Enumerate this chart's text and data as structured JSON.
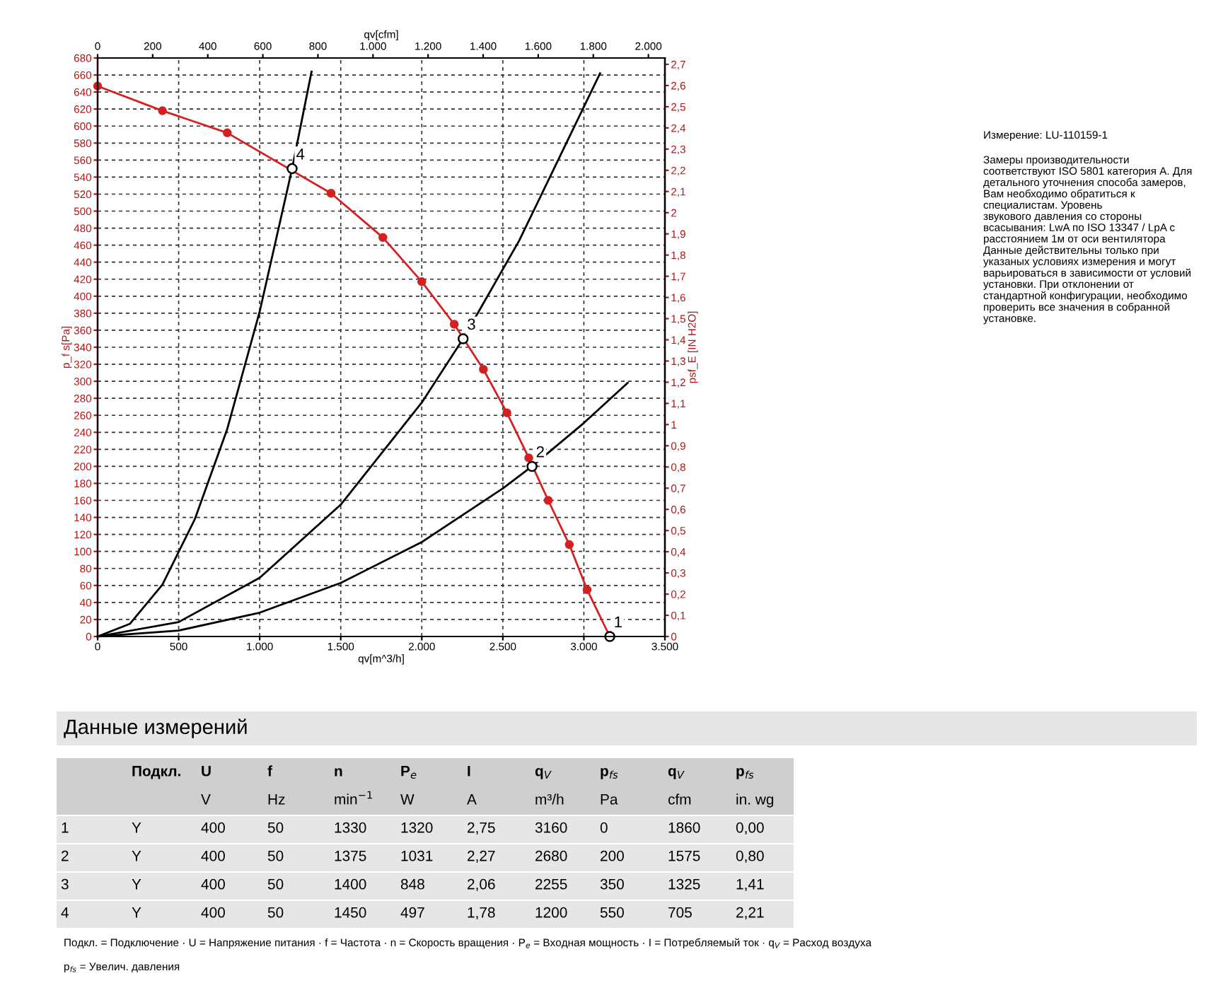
{
  "chart_data": {
    "type": "line",
    "xlabel": "qv[m^3/h]",
    "x2label": "qv[cfm]",
    "ylabel": "p_f s[Pa]",
    "y2label": "psf_E [IN H2O]",
    "xlim": [
      0,
      3500
    ],
    "xticks": [
      0,
      500,
      {
        "value": 1000,
        "label": "1.000"
      },
      {
        "value": 1500,
        "label": "1.500"
      },
      {
        "value": 2000,
        "label": "2.000"
      },
      {
        "value": 2500,
        "label": "2.500"
      },
      {
        "value": 3000,
        "label": "3.000"
      },
      {
        "value": 3500,
        "label": "3.500"
      }
    ],
    "x2lim": [
      0,
      2060
    ],
    "x2ticks": [
      0,
      200,
      400,
      600,
      800,
      {
        "value": 1000,
        "label": "1.000"
      },
      {
        "value": 1200,
        "label": "1.200"
      },
      {
        "value": 1400,
        "label": "1.400"
      },
      {
        "value": 1600,
        "label": "1.600"
      },
      {
        "value": 1800,
        "label": "1.800"
      },
      {
        "value": 2000,
        "label": "2.000"
      }
    ],
    "ylim": [
      0,
      680
    ],
    "yticks": [
      0,
      20,
      40,
      60,
      80,
      100,
      120,
      140,
      160,
      180,
      200,
      220,
      240,
      260,
      280,
      300,
      320,
      340,
      360,
      380,
      400,
      420,
      440,
      460,
      480,
      500,
      520,
      540,
      560,
      580,
      600,
      620,
      640,
      660,
      680
    ],
    "y2lim": [
      0,
      2.73
    ],
    "y2ticks": [
      0,
      {
        "value": 0.1,
        "label": "0,1"
      },
      {
        "value": 0.2,
        "label": "0,2"
      },
      {
        "value": 0.3,
        "label": "0,3"
      },
      {
        "value": 0.4,
        "label": "0,4"
      },
      {
        "value": 0.5,
        "label": "0,5"
      },
      {
        "value": 0.6,
        "label": "0,6"
      },
      {
        "value": 0.7,
        "label": "0,7"
      },
      {
        "value": 0.8,
        "label": "0,8"
      },
      {
        "value": 0.9,
        "label": "0,9"
      },
      1,
      {
        "value": 1.1,
        "label": "1,1"
      },
      {
        "value": 1.2,
        "label": "1,2"
      },
      {
        "value": 1.3,
        "label": "1,3"
      },
      {
        "value": 1.4,
        "label": "1,4"
      },
      {
        "value": 1.5,
        "label": "1,5"
      },
      {
        "value": 1.6,
        "label": "1,6"
      },
      {
        "value": 1.7,
        "label": "1,7"
      },
      {
        "value": 1.8,
        "label": "1,8"
      },
      {
        "value": 1.9,
        "label": "1,9"
      },
      2,
      {
        "value": 2.1,
        "label": "2,1"
      },
      {
        "value": 2.2,
        "label": "2,2"
      },
      {
        "value": 2.3,
        "label": "2,3"
      },
      {
        "value": 2.4,
        "label": "2,4"
      },
      {
        "value": 2.5,
        "label": "2,5"
      },
      {
        "value": 2.6,
        "label": "2,6"
      },
      {
        "value": 2.7,
        "label": "2,7"
      }
    ],
    "grid": true,
    "series": [
      {
        "color": "#d42020",
        "marker": "circle",
        "x": [
          0,
          400,
          800,
          1440,
          1760,
          2000,
          2200,
          2380,
          2525,
          2660,
          2780,
          2910,
          3020,
          3160
        ],
        "values": [
          647,
          618,
          592,
          521,
          469,
          417,
          367,
          314,
          263,
          210,
          160,
          108,
          55,
          0
        ]
      },
      {
        "color": "#000000",
        "x": [
          0,
          200,
          400,
          600,
          800,
          1000,
          1200,
          1320
        ],
        "values": [
          0,
          15,
          61,
          138,
          244,
          382,
          550,
          664
        ]
      },
      {
        "color": "#000000",
        "x": [
          0,
          500,
          1000,
          1500,
          2000,
          2255,
          2600,
          3100
        ],
        "values": [
          0,
          17,
          69,
          155,
          275,
          350,
          465,
          662
        ]
      },
      {
        "color": "#000000",
        "x": [
          0,
          500,
          1000,
          1500,
          2000,
          2500,
          2680,
          3000,
          3270
        ],
        "values": [
          0,
          7,
          28,
          63,
          111,
          174,
          200,
          251,
          298
        ]
      },
      {
        "type": "scatter",
        "color": "#000000",
        "marker": "circle",
        "x": [
          3160,
          2680,
          2255,
          1200
        ],
        "values": [
          0,
          200,
          350,
          550
        ]
      }
    ],
    "annotations": [
      {
        "text": "1",
        "x": 3160,
        "y": 0
      },
      {
        "text": "2",
        "x": 2680,
        "y": 200
      },
      {
        "text": "3",
        "x": 2255,
        "y": 350
      },
      {
        "text": "4",
        "x": 1200,
        "y": 550
      },
      "Измерение: LU-110159-1",
      "Замеры производительности\nсоответствуют ISO 5801 категория А. Для\nдетального уточнения способа замеров,\nВам необходимо обратиться к\nспециалистам. Уровень\nзвукового давления со стороны\nвсасывания: LwA по ISO 13347 / LpA с\nрасстоянием 1м от оси вентилятора\nДанные действительны только при\nуказаных условиях измерения и могут\nварьироваться в зависимости от условий\nустановки. При отклонении от\nстандартной конфигурации, необходимо\nпроверить все значения в собранной\nустановке.",
      "Данные измерений",
      "Подкл.",
      "U",
      "f",
      "n",
      "P$_{e}$",
      "I",
      "q$_{V}$",
      "p$_{fs}$",
      "q$_{V}$",
      "p$_{fs}$",
      "V",
      "Hz",
      "min$^{−1}$",
      "W",
      "A",
      "m³/h",
      "Pa",
      "cfm",
      "in. wg",
      "1",
      "Y",
      "400",
      "50",
      "1330",
      "1320",
      "2,75",
      "3160",
      "0",
      "1860",
      "0,00",
      "2",
      "Y",
      "400",
      "50",
      "1375",
      "1031",
      "2,27",
      "2680",
      "200",
      "1575",
      "0,80",
      "3",
      "Y",
      "400",
      "50",
      "1400",
      "848",
      "2,06",
      "2255",
      "350",
      "1325",
      "1,41",
      "4",
      "Y",
      "400",
      "50",
      "1450",
      "497",
      "1,78",
      "1200",
      "550",
      "705",
      "2,21",
      "Подкл. = Подключение · U = Напряжение питания · f = Частота · n = Скорость вращения · P$_{e}$ = Входная мощность · I = Потребляемый ток · q$_{V}$ = Расход воздуха",
      "p$_{fs}$ = Увелич. давления"
    ]
  }
}
